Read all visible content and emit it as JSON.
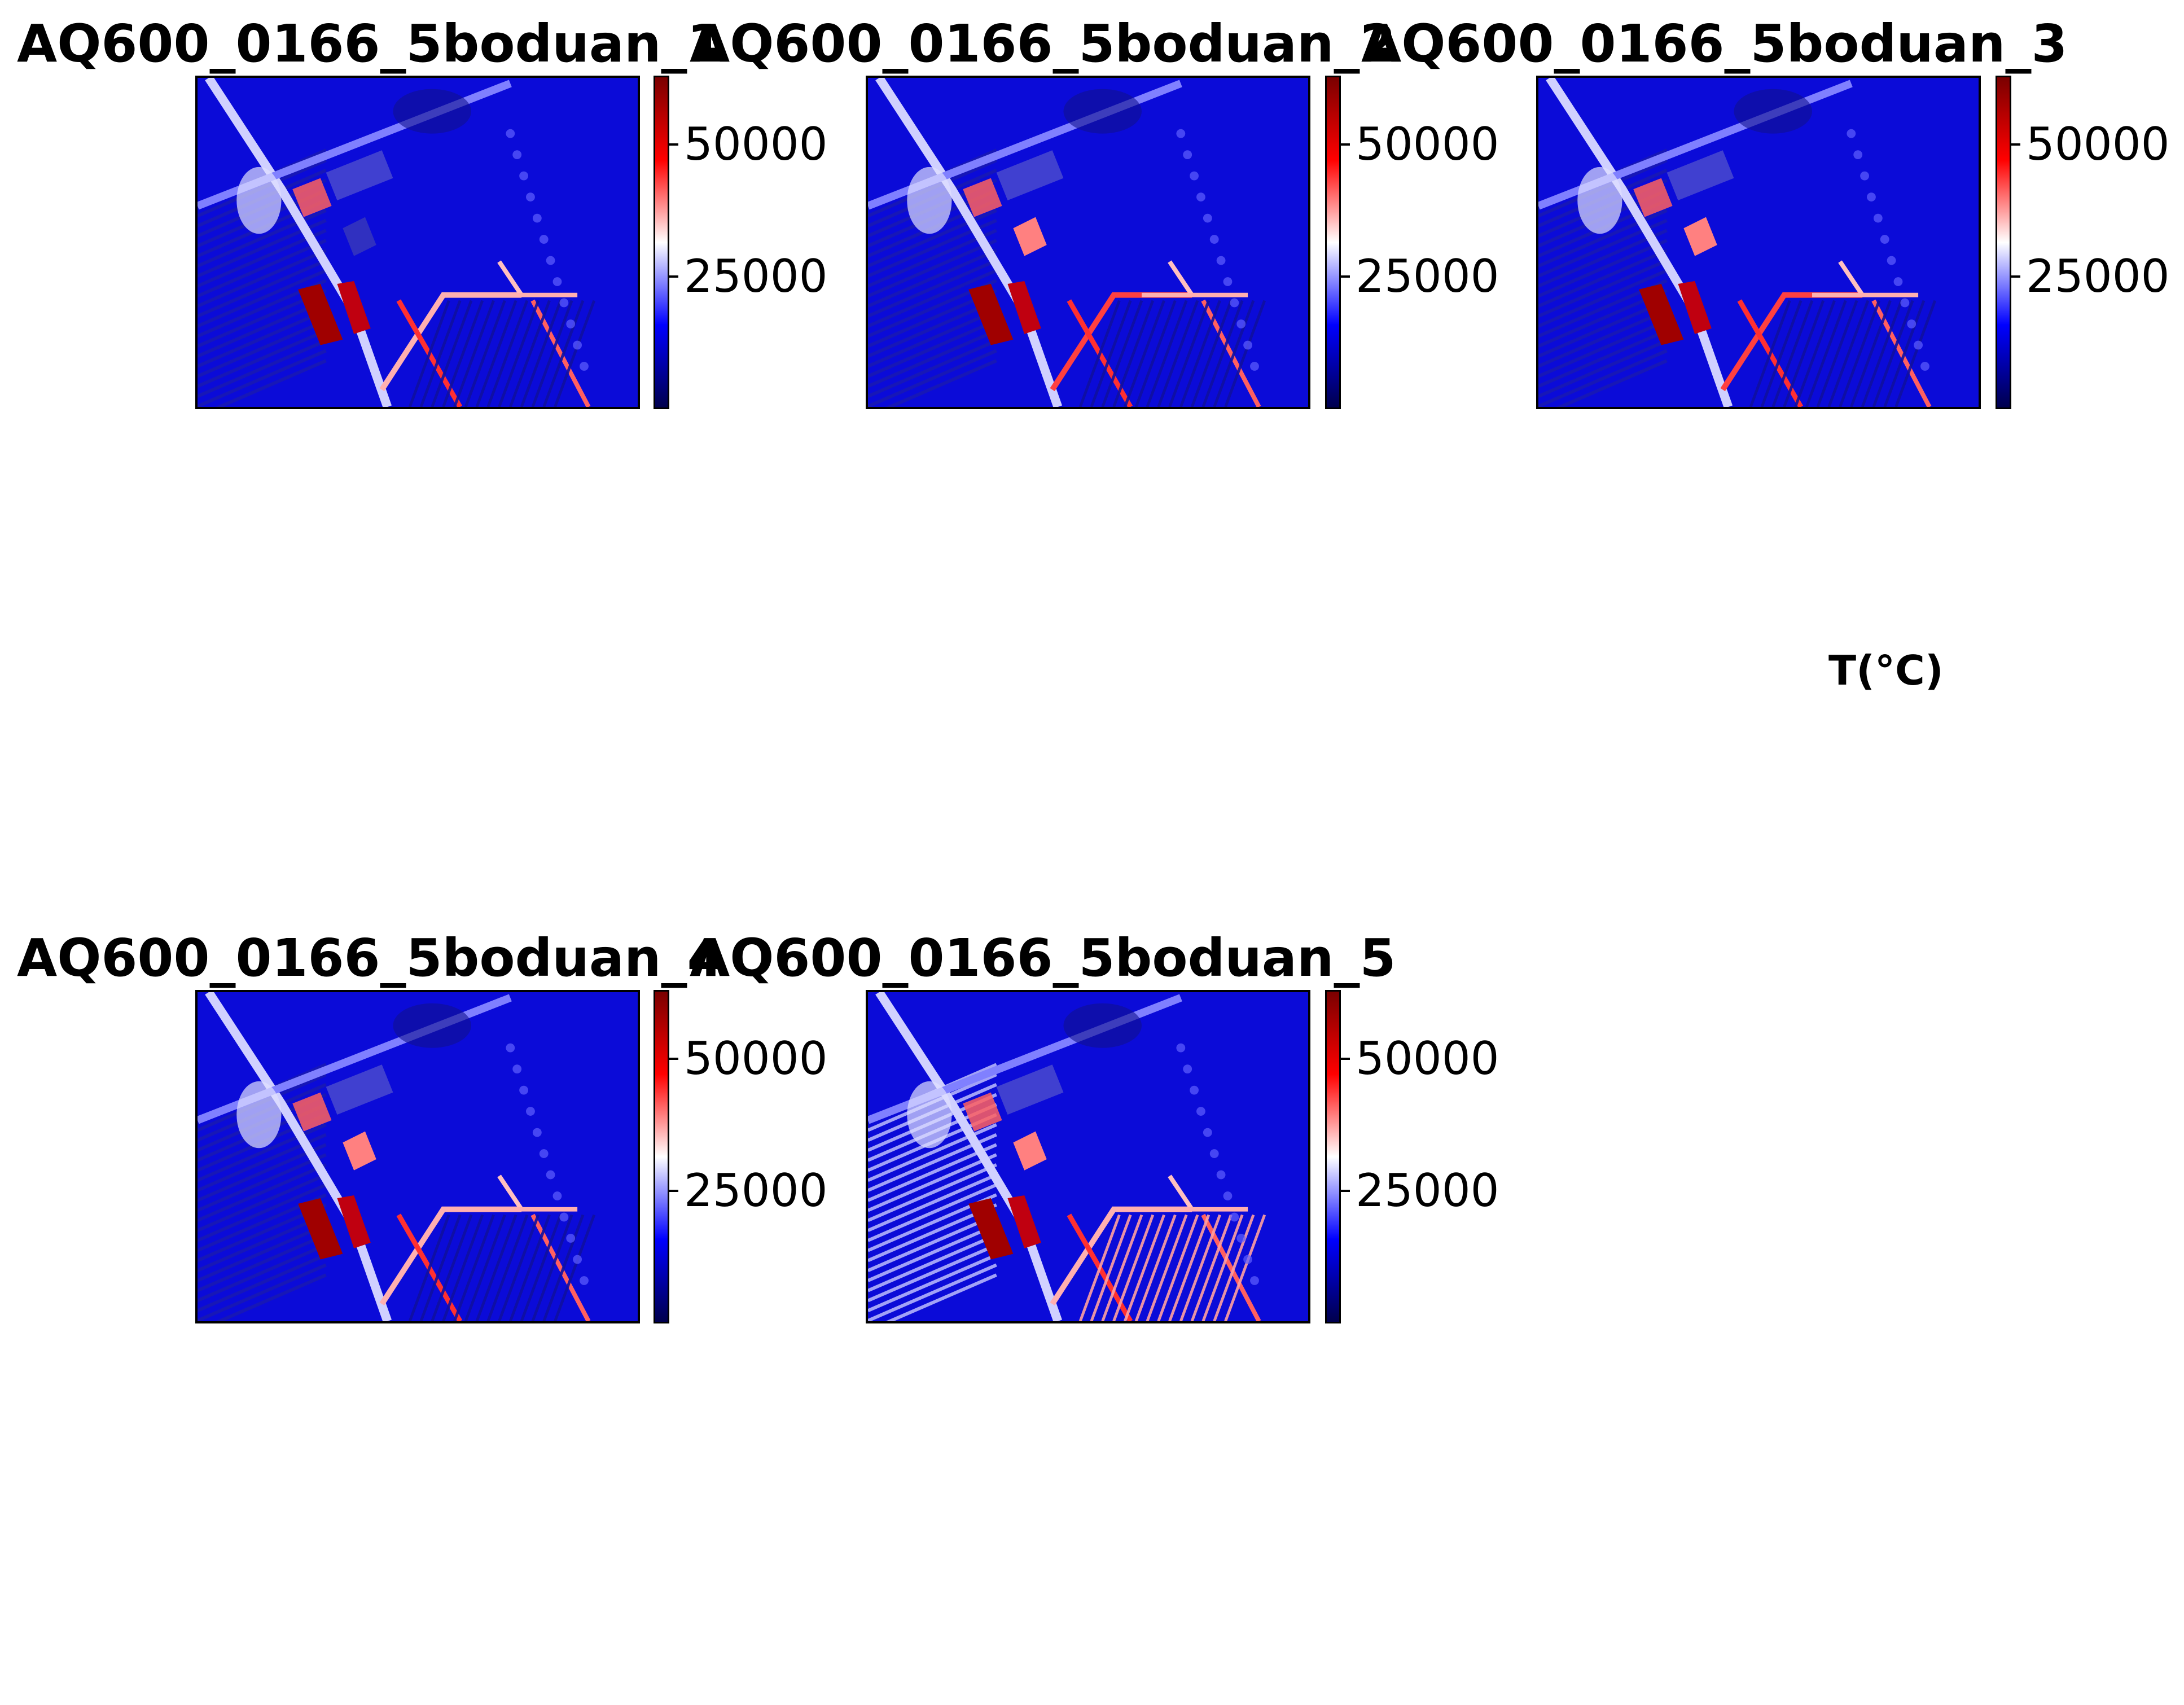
{
  "figure": {
    "unit_label": "T(°C)"
  },
  "colors": {
    "cmap_low": "#00004d",
    "cmap_mid_low": "#0000ff",
    "cmap_mid": "#ffffff",
    "cmap_mid_high": "#ff0000",
    "cmap_high": "#7a0000",
    "background": "#ffffff"
  },
  "chart_data": [
    {
      "type": "heatmap",
      "title": "AQ600_0166_5boduan_1",
      "colormap": "seismic",
      "colorbar": {
        "range": [
          0,
          63000
        ],
        "ticks": [
          25000,
          50000
        ],
        "tick_labels": [
          "25000",
          "50000"
        ]
      },
      "xticks": [],
      "yticks": []
    },
    {
      "type": "heatmap",
      "title": "AQ600_0166_5boduan_2",
      "colormap": "seismic",
      "colorbar": {
        "range": [
          0,
          63000
        ],
        "ticks": [
          25000,
          50000
        ],
        "tick_labels": [
          "25000",
          "50000"
        ]
      },
      "xticks": [],
      "yticks": []
    },
    {
      "type": "heatmap",
      "title": "AQ600_0166_5boduan_3",
      "colormap": "seismic",
      "colorbar": {
        "range": [
          0,
          63000
        ],
        "ticks": [
          25000,
          50000
        ],
        "tick_labels": [
          "25000",
          "50000"
        ]
      },
      "xticks": [],
      "yticks": []
    },
    {
      "type": "heatmap",
      "title": "AQ600_0166_5boduan_4",
      "colormap": "seismic",
      "colorbar": {
        "range": [
          0,
          63000
        ],
        "ticks": [
          25000,
          50000
        ],
        "tick_labels": [
          "25000",
          "50000"
        ]
      },
      "xticks": [],
      "yticks": []
    },
    {
      "type": "heatmap",
      "title": "AQ600_0166_5boduan_5",
      "colormap": "seismic",
      "colorbar": {
        "range": [
          0,
          63000
        ],
        "ticks": [
          25000,
          50000
        ],
        "tick_labels": [
          "25000",
          "50000"
        ]
      },
      "xticks": [],
      "yticks": []
    }
  ]
}
